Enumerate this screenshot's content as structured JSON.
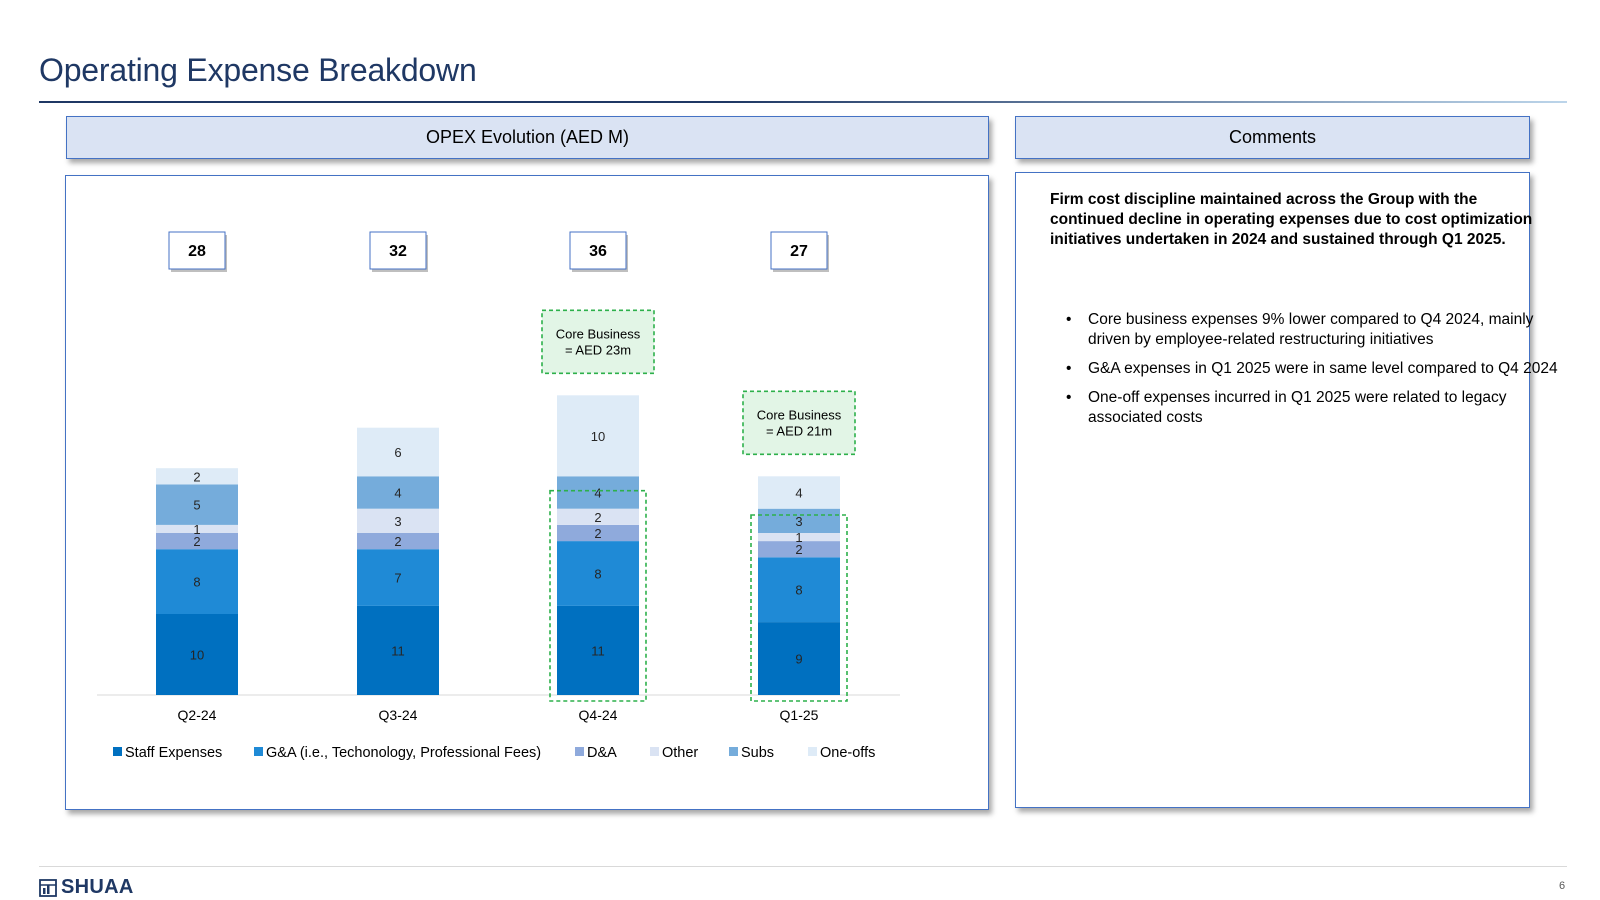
{
  "page": {
    "title": "Operating Expense Breakdown",
    "page_number": "6",
    "logo_text": "SHUAA"
  },
  "left_panel": {
    "header": "OPEX Evolution (AED M)"
  },
  "right_panel": {
    "header": "Comments",
    "lead": "Firm cost discipline maintained across the Group with the continued decline in operating expenses due to cost optimization initiatives undertaken in 2024 and sustained through Q1 2025.",
    "bullets": [
      "Core business expenses 9% lower compared to Q4 2024, mainly driven by employee-related restructuring initiatives",
      "G&A expenses in Q1 2025 were in same level compared to Q4 2024",
      "One-off expenses incurred in Q1 2025 were related to legacy associated costs"
    ]
  },
  "chart_data": {
    "type": "bar",
    "stacked": true,
    "categories": [
      "Q2-24",
      "Q3-24",
      "Q4-24",
      "Q1-25"
    ],
    "totals": [
      28,
      32,
      36,
      27
    ],
    "series": [
      {
        "name": "Staff Expenses",
        "color": "#0070c0",
        "values": [
          10,
          11,
          11,
          9
        ]
      },
      {
        "name": "G&A (i.e., Techonology, Professional Fees)",
        "color": "#1f8ad6",
        "values": [
          8,
          7,
          8,
          8
        ]
      },
      {
        "name": "D&A",
        "color": "#8faadc",
        "values": [
          2,
          2,
          2,
          2
        ]
      },
      {
        "name": "Other",
        "color": "#dae3f3",
        "values": [
          1,
          3,
          2,
          1
        ]
      },
      {
        "name": "Subs",
        "color": "#75acdb",
        "values": [
          5,
          4,
          4,
          3
        ]
      },
      {
        "name": "One-offs",
        "color": "#deebf7",
        "values": [
          2,
          6,
          10,
          4
        ]
      }
    ],
    "legend_position": "bottom",
    "annotations": [
      {
        "category": "Q4-24",
        "line1": "Core Business",
        "line2": "= AED 23m"
      },
      {
        "category": "Q1-25",
        "line1": "Core Business",
        "line2": "= AED 21m"
      }
    ],
    "highlight_color": "#2db04b"
  }
}
